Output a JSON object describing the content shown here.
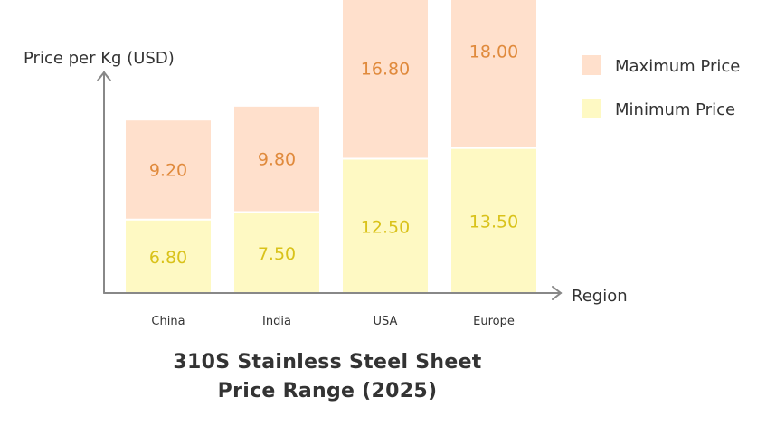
{
  "chart_data": {
    "type": "bar",
    "stacked": true,
    "title_lines": [
      "310S Stainless Steel Sheet",
      "Price Range (2025)"
    ],
    "xlabel": "Region",
    "ylabel": "Price per Kg (USD)",
    "categories": [
      "China",
      "India",
      "USA",
      "Europe"
    ],
    "series": [
      {
        "name": "Minimum Price",
        "values": [
          6.8,
          7.5,
          12.5,
          13.5
        ],
        "value_labels": [
          "6.80",
          "7.50",
          "12.50",
          "13.50"
        ],
        "fill": "#fef9c3",
        "label_color": "#d9c21a"
      },
      {
        "name": "Maximum Price",
        "values": [
          9.2,
          9.8,
          16.8,
          18.0
        ],
        "value_labels": [
          "9.20",
          "9.80",
          "16.80",
          "18.00"
        ],
        "fill": "#ffe0cc",
        "label_color": "#e08a3c"
      }
    ],
    "legend_position": "top-right",
    "grid": false
  },
  "colors": {
    "axis": "#888888",
    "text": "#333333",
    "background": "#ffffff"
  }
}
